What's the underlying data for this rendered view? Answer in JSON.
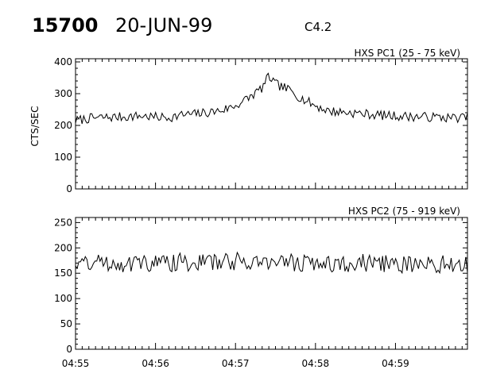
{
  "header": {
    "event_id": "15700",
    "date": "20-JUN-99",
    "flare_class": "C4.2"
  },
  "chart_data": [
    {
      "type": "line",
      "title": "HXS PC1 (25 - 75 keV)",
      "ylabel": "CTS/SEC",
      "xlabel": "",
      "ylim": [
        0,
        410
      ],
      "xlim": [
        "04:55",
        "04:59:54"
      ],
      "yticks": [
        "0",
        "100",
        "200",
        "300",
        "400"
      ],
      "xticks": [
        "04:55",
        "04:56",
        "04:57",
        "04:58",
        "04:59"
      ],
      "show_xtick_labels": false,
      "grid": false,
      "series": [
        {
          "x": [
            "04:55:00",
            "04:55:10",
            "04:55:20",
            "04:55:30",
            "04:55:40",
            "04:55:50",
            "04:56:00",
            "04:56:10",
            "04:56:20",
            "04:56:30",
            "04:56:40",
            "04:56:50",
            "04:57:00",
            "04:57:10",
            "04:57:20",
            "04:57:25",
            "04:57:30",
            "04:57:40",
            "04:57:50",
            "04:58:00",
            "04:58:10",
            "04:58:20",
            "04:58:30",
            "04:58:40",
            "04:58:50",
            "04:59:00",
            "04:59:10",
            "04:59:20",
            "04:59:30",
            "04:59:40",
            "04:59:54"
          ],
          "values": [
            215,
            222,
            225,
            226,
            228,
            230,
            226,
            225,
            233,
            236,
            241,
            248,
            262,
            287,
            318,
            355,
            330,
            312,
            284,
            262,
            245,
            242,
            239,
            235,
            232,
            230,
            228,
            227,
            226,
            224,
            225
          ]
        }
      ]
    },
    {
      "type": "line",
      "title": "HXS PC2 (75 - 919 keV)",
      "ylabel": "",
      "xlabel": "",
      "ylim": [
        0,
        260
      ],
      "xlim": [
        "04:55",
        "04:59:54"
      ],
      "yticks": [
        "0",
        "50",
        "100",
        "150",
        "200",
        "250"
      ],
      "xticks": [
        "04:55",
        "04:56",
        "04:57",
        "04:58",
        "04:59"
      ],
      "show_xtick_labels": true,
      "grid": false,
      "series": [
        {
          "x": [
            "04:55:00",
            "04:55:20",
            "04:55:40",
            "04:56:00",
            "04:56:20",
            "04:56:40",
            "04:57:00",
            "04:57:20",
            "04:57:40",
            "04:58:00",
            "04:58:20",
            "04:58:40",
            "04:59:00",
            "04:59:20",
            "04:59:40",
            "04:59:54"
          ],
          "values": [
            172,
            171,
            170,
            170,
            172,
            171,
            174,
            173,
            171,
            170,
            169,
            170,
            168,
            168,
            167,
            168
          ]
        }
      ]
    }
  ]
}
